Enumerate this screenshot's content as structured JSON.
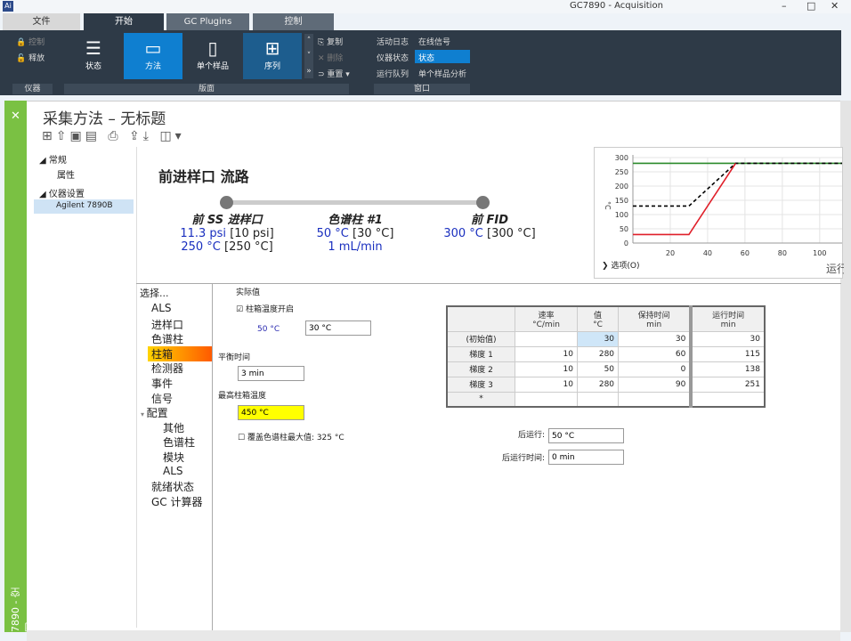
{
  "app": {
    "title": "GC7890 - Acquisition",
    "logo": "Ai"
  },
  "tabs": [
    {
      "label": "文件"
    },
    {
      "label": "开始"
    },
    {
      "label": "GC Plugins"
    },
    {
      "label": "控制"
    }
  ],
  "ribbon": {
    "instrument": {
      "control": "控制",
      "release": "释放",
      "group": "仪器"
    },
    "layout": {
      "status": "状态",
      "method": "方法",
      "single_sample": "单个样品",
      "sequence": "序列",
      "copy": "复制",
      "delete": "删除",
      "reset": "重置",
      "group": "版面"
    },
    "window": {
      "activity_log": "活动日志",
      "online_signal": "在线信号",
      "instrument_status": "仪器状态",
      "status": "状态",
      "run_queue": "运行队列",
      "single_sample_analysis": "单个样品分析",
      "group": "窗口"
    }
  },
  "page": {
    "title": "采集方法 – 无标题",
    "side_label": "7890 - 空闲"
  },
  "tree": [
    {
      "label": "常规",
      "children": [
        "属性"
      ]
    },
    {
      "label": "仪器设置",
      "children": [
        "Agilent 7890B"
      ]
    }
  ],
  "flow": {
    "title": "前进样口 流路",
    "inlet": {
      "name": "前 SS 进样口",
      "line1_actual": "11.3 psi",
      "line1_set": "[10 psi]",
      "line2_actual": "250 °C",
      "line2_set": "[250 °C]"
    },
    "column": {
      "name": "色谱柱 #1",
      "line1_actual": "50 °C",
      "line1_set": "[30 °C]",
      "line2": "1 mL/min"
    },
    "detector": {
      "name": "前 FID",
      "line1_actual": "300 °C",
      "line1_set": "[300 °C]"
    }
  },
  "chart_data": {
    "type": "line",
    "ylabel": "°C",
    "xlabel": "运行",
    "ylim": [
      0,
      300
    ],
    "xlim": [
      0,
      112
    ],
    "yticks": [
      0,
      50,
      100,
      150,
      200,
      250,
      300
    ],
    "xticks": [
      20,
      40,
      60,
      80,
      100
    ],
    "grid": true,
    "series": [
      {
        "color": "#2a8a2a",
        "style": "solid",
        "x": [
          0,
          112
        ],
        "y": [
          280,
          280
        ]
      },
      {
        "color": "#000000",
        "style": "dashed",
        "x": [
          0,
          30,
          55,
          112
        ],
        "y": [
          130,
          130,
          280,
          280
        ]
      },
      {
        "color": "#e0202a",
        "style": "solid",
        "x": [
          0,
          30,
          55
        ],
        "y": [
          30,
          30,
          280
        ]
      }
    ],
    "options_label": "选项(O)"
  },
  "nav": {
    "header": "选择...",
    "items": [
      "ALS",
      "进样口",
      "色谱柱",
      "柱箱",
      "检测器",
      "事件",
      "信号",
      "配置",
      "其他",
      "色谱柱",
      "模块",
      "ALS",
      "就绪状态",
      "GC 计算器"
    ],
    "selected": 3
  },
  "oven": {
    "actual_label": "实际值",
    "oven_on_label": "柱箱温度开启",
    "oven_on": true,
    "actual_temp": "50 °C",
    "setpoint": "30 °C",
    "equil_label": "平衡时间",
    "equil": "3 min",
    "max_label": "最高柱箱温度",
    "max": "450 °C",
    "override_label": "覆盖色谱柱最大值: 325 °C",
    "override": false,
    "post_run_label": "后运行:",
    "post_run": "50 °C",
    "post_run_time_label": "后运行时间:",
    "post_run_time": "0 min"
  },
  "ramp_table": {
    "headers": [
      [
        "",
        ""
      ],
      [
        "速率",
        "°C/min"
      ],
      [
        "值",
        "°C"
      ],
      [
        "保持时间",
        "min"
      ],
      [
        "运行时间",
        "min"
      ]
    ],
    "rows": [
      [
        "(初始值)",
        "",
        "30",
        "30",
        "30"
      ],
      [
        "梯度 1",
        "10",
        "280",
        "60",
        "115"
      ],
      [
        "梯度 2",
        "10",
        "50",
        "0",
        "138"
      ],
      [
        "梯度 3",
        "10",
        "280",
        "90",
        "251"
      ],
      [
        "*",
        "",
        "",
        "",
        ""
      ]
    ]
  }
}
